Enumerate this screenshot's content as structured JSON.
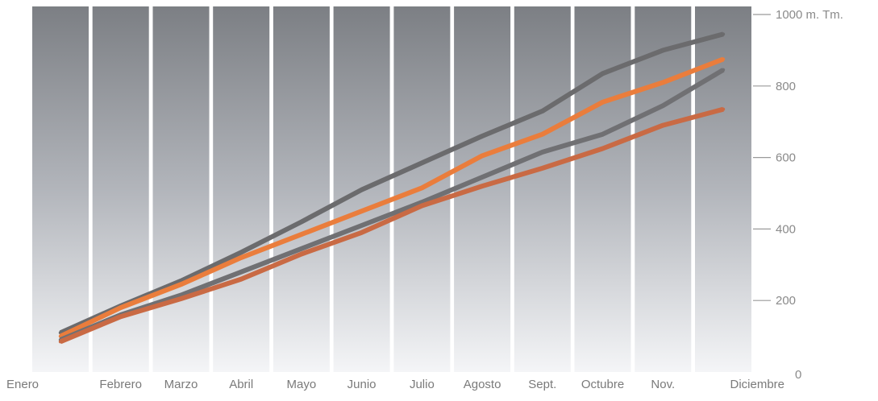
{
  "chart_data": {
    "type": "line",
    "title": "",
    "xlabel": "",
    "ylabel": "",
    "y_unit_label": "1000 m. Tm.",
    "categories": [
      "Enero",
      "Febrero",
      "Marzo",
      "Abril",
      "Mayo",
      "Junio",
      "Julio",
      "Agosto",
      "Sept.",
      "Octubre",
      "Nov.",
      "Diciembre"
    ],
    "y_ticks": [
      {
        "value": 0,
        "label": "0"
      },
      {
        "value": 200,
        "label": "200"
      },
      {
        "value": 400,
        "label": "400"
      },
      {
        "value": 600,
        "label": "600"
      },
      {
        "value": 800,
        "label": "800"
      },
      {
        "value": 1000,
        "label": "1000 m. Tm."
      }
    ],
    "ylim": [
      0,
      1000
    ],
    "grid": false,
    "legend": "none",
    "series": [
      {
        "color": "#6b6b6d",
        "values": [
          110,
          185,
          255,
          335,
          420,
          510,
          585,
          660,
          730,
          835,
          900,
          945
        ]
      },
      {
        "color": "#ea7d3c",
        "values": [
          100,
          180,
          245,
          320,
          385,
          450,
          515,
          605,
          665,
          755,
          810,
          875
        ]
      },
      {
        "color": "#707073",
        "values": [
          90,
          160,
          215,
          280,
          345,
          410,
          475,
          545,
          615,
          665,
          745,
          845
        ]
      },
      {
        "color": "#c96a44",
        "values": [
          85,
          155,
          205,
          260,
          330,
          390,
          465,
          520,
          570,
          625,
          690,
          735
        ]
      }
    ]
  }
}
